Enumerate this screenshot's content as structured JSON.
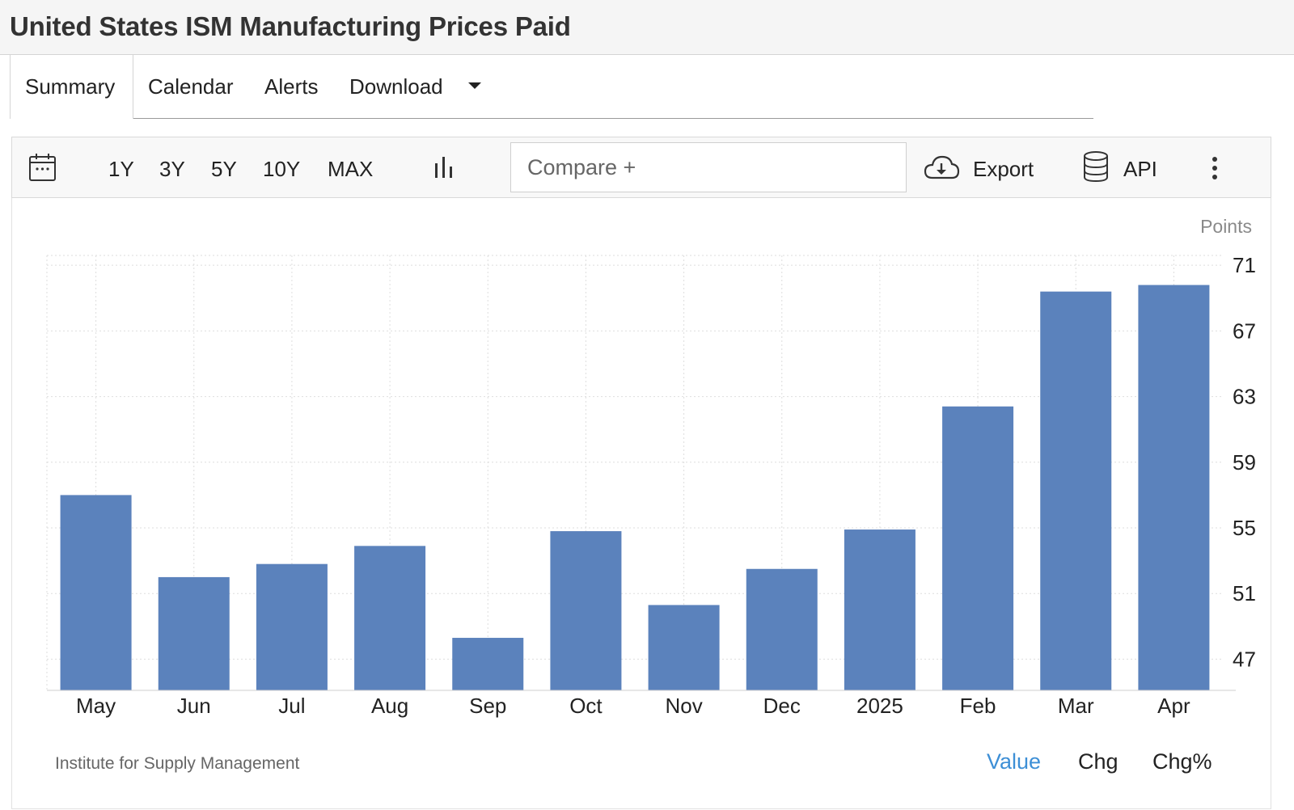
{
  "header": {
    "title": "United States ISM Manufacturing Prices Paid"
  },
  "tabs": [
    {
      "label": "Summary",
      "active": true
    },
    {
      "label": "Calendar"
    },
    {
      "label": "Alerts"
    },
    {
      "label": "Download"
    }
  ],
  "toolbar": {
    "ranges": [
      "1Y",
      "3Y",
      "5Y",
      "10Y",
      "MAX"
    ],
    "compare_placeholder": "Compare +",
    "export_label": "Export",
    "api_label": "API",
    "icons": [
      "calendar-icon",
      "bar-chart-icon",
      "cloud-download-icon",
      "database-icon",
      "more-vertical-icon"
    ]
  },
  "chart_data": {
    "type": "bar",
    "unit_label": "Points",
    "categories": [
      "May",
      "Jun",
      "Jul",
      "Aug",
      "Sep",
      "Oct",
      "Nov",
      "Dec",
      "2025",
      "Feb",
      "Mar",
      "Apr"
    ],
    "values": [
      57.0,
      52.0,
      52.8,
      53.9,
      48.3,
      54.8,
      50.3,
      52.5,
      54.9,
      62.4,
      69.4,
      69.8
    ],
    "y_ticks": [
      47,
      51,
      55,
      59,
      63,
      67,
      71
    ],
    "ylim": [
      45.1,
      71.6
    ],
    "bar_color": "#5b82bc",
    "grid": true,
    "source": "Institute for Supply Management"
  },
  "footer": {
    "source": "Institute for Supply Management",
    "modes": [
      {
        "label": "Value",
        "active": true,
        "color": "#3d8fd6"
      },
      {
        "label": "Chg"
      },
      {
        "label": "Chg%"
      }
    ]
  }
}
